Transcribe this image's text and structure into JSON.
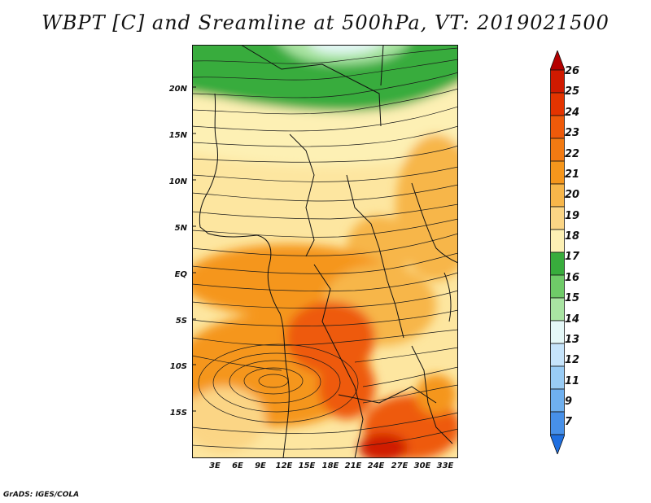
{
  "title": "WBPT [C] and Sreamline at 500hPa, VT: 2019021500",
  "footer": "GrADS: IGES/COLA",
  "map": {
    "lat_labels": [
      "20N",
      "15N",
      "10N",
      "5N",
      "EQ",
      "5S",
      "10S",
      "15S"
    ],
    "lon_labels": [
      "3E",
      "6E",
      "9E",
      "12E",
      "15E",
      "18E",
      "21E",
      "24E",
      "27E",
      "30E",
      "33E"
    ]
  },
  "colorbar": {
    "labels": [
      "26",
      "25",
      "24",
      "23",
      "22",
      "21",
      "20",
      "19",
      "18",
      "17",
      "16",
      "15",
      "14",
      "13",
      "12",
      "11",
      "9",
      "7"
    ],
    "colors": [
      "#b40000",
      "#d01a00",
      "#e43400",
      "#ee5a0a",
      "#f27a12",
      "#f5961c",
      "#f7b64a",
      "#fbd585",
      "#fdf0b4",
      "#38ac3c",
      "#6fcb68",
      "#a9e4a2",
      "#e5f8f8",
      "#c6e4fb",
      "#99ccf5",
      "#6fb0ef",
      "#4790e8",
      "#1f6fe0"
    ]
  }
}
